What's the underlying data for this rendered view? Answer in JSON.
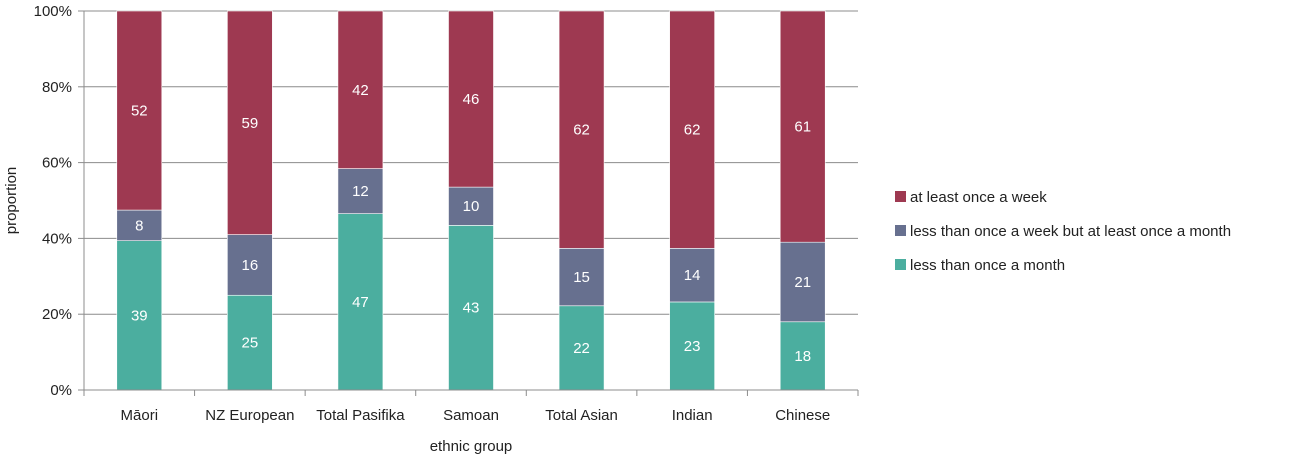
{
  "chart_data": {
    "type": "bar",
    "stacked": true,
    "percent_scale": true,
    "title": "",
    "xlabel": "ethnic group",
    "ylabel": "proportion",
    "ylim": [
      0,
      100
    ],
    "yticks": [
      "0%",
      "20%",
      "40%",
      "60%",
      "80%",
      "100%"
    ],
    "grid": true,
    "legend_position": "right",
    "categories": [
      "Māori",
      "NZ European",
      "Total Pasifika",
      "Samoan",
      "Total Asian",
      "Indian",
      "Chinese"
    ],
    "series": [
      {
        "name": "less than once a month",
        "color": "#4BAE9F",
        "values": [
          39,
          25,
          47,
          43,
          22,
          23,
          18
        ]
      },
      {
        "name": "less than once a week but at least once a month",
        "color": "#67708F",
        "values": [
          8,
          16,
          12,
          10,
          15,
          14,
          21
        ]
      },
      {
        "name": "at least once a week",
        "color": "#9E3951",
        "values": [
          52,
          59,
          42,
          46,
          62,
          62,
          61
        ]
      }
    ],
    "legend_order": [
      2,
      1,
      0
    ]
  }
}
